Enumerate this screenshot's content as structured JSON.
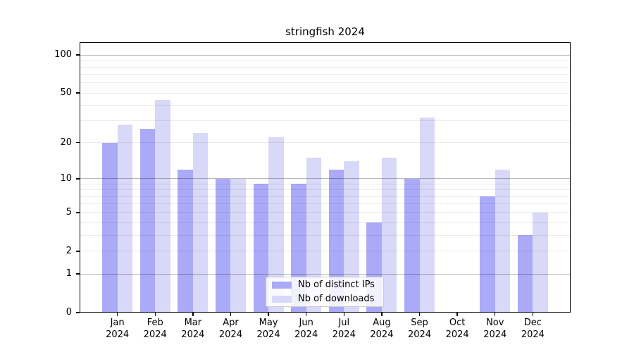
{
  "chart_data": {
    "type": "bar",
    "title": "stringfish 2024",
    "categories": [
      {
        "month": "Jan",
        "year": "2024"
      },
      {
        "month": "Feb",
        "year": "2024"
      },
      {
        "month": "Mar",
        "year": "2024"
      },
      {
        "month": "Apr",
        "year": "2024"
      },
      {
        "month": "May",
        "year": "2024"
      },
      {
        "month": "Jun",
        "year": "2024"
      },
      {
        "month": "Jul",
        "year": "2024"
      },
      {
        "month": "Aug",
        "year": "2024"
      },
      {
        "month": "Sep",
        "year": "2024"
      },
      {
        "month": "Oct",
        "year": "2024"
      },
      {
        "month": "Nov",
        "year": "2024"
      },
      {
        "month": "Dec",
        "year": "2024"
      }
    ],
    "series": [
      {
        "name": "Nb of distinct IPs",
        "key": "distinct-ips",
        "color": "#aaaaf8",
        "values": [
          20,
          26,
          12,
          10,
          9,
          9,
          12,
          4,
          10,
          0,
          7,
          3
        ]
      },
      {
        "name": "Nb of downloads",
        "key": "downloads",
        "color": "#d8d8f8",
        "values": [
          28,
          44,
          24,
          10,
          22,
          15,
          14,
          15,
          32,
          0,
          12,
          5
        ]
      }
    ],
    "y_axis": {
      "scale": "log1p",
      "ylim": [
        0,
        126
      ],
      "tick_labels": [
        "0",
        "1",
        "2",
        "5",
        "10",
        "20",
        "50",
        "100"
      ],
      "tick_values": [
        0,
        1,
        2,
        5,
        10,
        20,
        50,
        100
      ],
      "minor_gridlines": [
        2,
        3,
        4,
        5,
        6,
        7,
        8,
        9,
        20,
        30,
        40,
        50,
        60,
        70,
        80,
        90
      ],
      "major_gridlines": [
        1,
        10,
        100
      ]
    },
    "legend": {
      "position": "lower center"
    },
    "colors": {
      "axis": "#000000",
      "grid_minor": "rgba(0,0,0,0.08)",
      "grid_major": "rgba(0,0,0,0.28)",
      "legend_border": "#cccccc",
      "legend_bg": "rgba(255,255,255,0.85)"
    },
    "grid": "both-on-top-of-bars"
  }
}
